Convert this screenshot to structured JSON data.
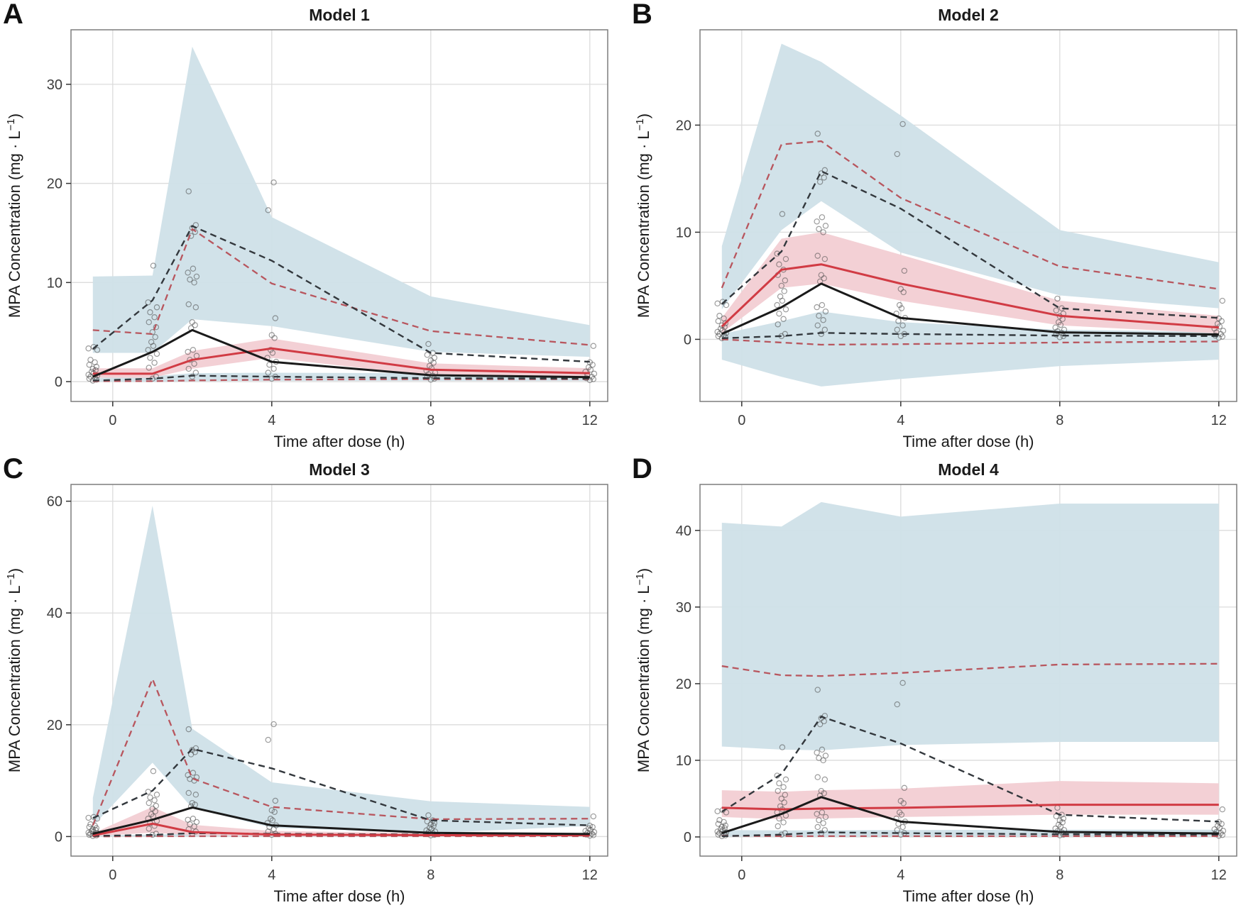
{
  "chart_data": {
    "type": "line",
    "description": "Visual predictive check of four pharmacokinetic models: observed percentiles (black), simulated percentiles (red) with confidence bands (blue = outer percentile CI, pink = median CI), and observed concentration points (open circles).",
    "xlabel": "Time after dose (h)",
    "ylabel": "MPA Concentration (mg · L⁻¹)",
    "ylabel_parts": [
      "MPA Concentration (mg · L",
      "−1",
      ")"
    ],
    "xticks": [
      0,
      4,
      8,
      12
    ],
    "xlim": [
      -1.05,
      12.45
    ],
    "x": [
      -0.5,
      1,
      2,
      4,
      8,
      12
    ],
    "observed": {
      "median": [
        0.5,
        3.0,
        5.2,
        2.0,
        0.65,
        0.45
      ],
      "p975": [
        3.3,
        8.2,
        15.7,
        12.2,
        2.9,
        2.0
      ],
      "p025": [
        0.1,
        0.3,
        0.6,
        0.5,
        0.35,
        0.3
      ],
      "points": {
        "-0.5": [
          0.1,
          0.2,
          0.3,
          0.4,
          0.5,
          0.6,
          0.7,
          0.85,
          1.0,
          1.15,
          1.3,
          1.5,
          1.7,
          1.95,
          2.2,
          3.2,
          3.35,
          3.5
        ],
        "1": [
          0.3,
          0.5,
          1.4,
          1.9,
          2.4,
          2.8,
          3.2,
          3.6,
          4.0,
          4.5,
          5.0,
          5.5,
          6.0,
          6.5,
          7.0,
          7.5,
          8.0,
          11.7
        ],
        "2": [
          0.5,
          0.9,
          1.3,
          1.8,
          2.2,
          2.6,
          3.0,
          3.2,
          5.4,
          5.7,
          6.0,
          7.5,
          7.8,
          10.0,
          10.3,
          10.6,
          11.0,
          11.4,
          14.7,
          15.1,
          15.5,
          15.8,
          19.2
        ],
        "4": [
          0.3,
          0.5,
          0.9,
          1.3,
          1.7,
          2.0,
          2.4,
          2.9,
          3.2,
          4.4,
          4.7,
          6.4,
          17.3,
          20.1
        ],
        "8": [
          0.2,
          0.3,
          0.45,
          0.6,
          0.75,
          0.9,
          1.1,
          1.35,
          1.6,
          1.9,
          2.15,
          2.4,
          2.7,
          2.9,
          3.8
        ],
        "12": [
          0.15,
          0.25,
          0.35,
          0.5,
          0.65,
          0.8,
          1.0,
          1.2,
          1.45,
          1.7,
          1.95,
          3.6
        ]
      }
    },
    "panels": [
      {
        "panel_label": "A",
        "title": "Model 1",
        "ylim": [
          -2.0,
          35.5
        ],
        "yticks": [
          0,
          10,
          20,
          30
        ],
        "simulated": {
          "median": [
            0.8,
            0.8,
            2.2,
            3.35,
            1.2,
            0.85
          ],
          "median_ci": {
            "lo": [
              0.4,
              0.4,
              1.3,
              2.4,
              0.6,
              0.45
            ],
            "hi": [
              1.35,
              1.35,
              3.1,
              4.35,
              1.85,
              1.35
            ]
          },
          "p975": [
            5.2,
            4.8,
            15.4,
            9.9,
            5.1,
            3.7
          ],
          "p025": [
            0.05,
            0.05,
            0.12,
            0.2,
            0.25,
            0.25
          ],
          "p975_ci": {
            "lo": [
              2.9,
              2.9,
              6.3,
              5.6,
              3.0,
              2.5
            ],
            "hi": [
              10.6,
              10.7,
              33.8,
              16.6,
              8.6,
              5.7
            ]
          },
          "p025_ci": {
            "lo": [
              0.0,
              0.0,
              0.05,
              0.08,
              0.08,
              0.08
            ],
            "hi": [
              0.35,
              0.55,
              0.85,
              0.9,
              0.85,
              0.8
            ]
          }
        }
      },
      {
        "panel_label": "B",
        "title": "Model 2",
        "ylim": [
          -5.8,
          28.9
        ],
        "yticks": [
          0,
          10,
          20
        ],
        "simulated": {
          "median": [
            1.2,
            6.5,
            7.0,
            5.2,
            2.2,
            1.1
          ],
          "median_ci": {
            "lo": [
              0.6,
              4.8,
              5.2,
              3.6,
              1.3,
              0.55
            ],
            "hi": [
              2.0,
              9.4,
              10.0,
              7.9,
              3.6,
              2.2
            ]
          },
          "p975": [
            4.8,
            18.2,
            18.5,
            13.2,
            6.8,
            4.7
          ],
          "p025": [
            0.0,
            -0.3,
            -0.5,
            -0.45,
            -0.3,
            -0.2
          ],
          "p975_ci": {
            "lo": [
              2.8,
              10.2,
              12.9,
              8.1,
              4.1,
              2.9
            ],
            "hi": [
              8.7,
              27.6,
              25.9,
              20.9,
              10.2,
              7.2
            ]
          },
          "p025_ci": {
            "lo": [
              -1.9,
              -3.5,
              -4.4,
              -3.7,
              -2.5,
              -1.9
            ],
            "hi": [
              0.5,
              1.7,
              2.6,
              1.6,
              0.9,
              0.7
            ]
          }
        }
      },
      {
        "panel_label": "C",
        "title": "Model 3",
        "ylim": [
          -3.5,
          63.0
        ],
        "yticks": [
          0,
          20,
          40,
          60
        ],
        "simulated": {
          "median": [
            0.2,
            2.3,
            0.8,
            0.35,
            0.25,
            0.25
          ],
          "median_ci": {
            "lo": [
              0.05,
              0.7,
              0.25,
              0.1,
              0.05,
              0.05
            ],
            "hi": [
              0.6,
              5.3,
              2.1,
              1.0,
              0.6,
              0.6
            ]
          },
          "p975": [
            2.0,
            28.2,
            10.4,
            5.3,
            3.1,
            3.2
          ],
          "p025": [
            0.02,
            0.05,
            0.05,
            0.05,
            0.05,
            0.05
          ],
          "p975_ci": {
            "lo": [
              1.9,
              13.2,
              5.1,
              1.6,
              0.6,
              1.9
            ],
            "hi": [
              6.9,
              59.2,
              19.3,
              9.7,
              6.3,
              5.3
            ]
          },
          "p025_ci": {
            "lo": [
              0.0,
              0.0,
              0.02,
              0.03,
              0.03,
              0.03
            ],
            "hi": [
              0.2,
              0.35,
              0.5,
              0.45,
              0.4,
              0.4
            ]
          }
        }
      },
      {
        "panel_label": "D",
        "title": "Model 4",
        "ylim": [
          -2.5,
          46.0
        ],
        "yticks": [
          0,
          10,
          20,
          30,
          40
        ],
        "simulated": {
          "median": [
            3.8,
            3.6,
            3.7,
            3.8,
            4.2,
            4.2
          ],
          "median_ci": {
            "lo": [
              2.6,
              2.3,
              2.4,
              2.6,
              2.9,
              2.9
            ],
            "hi": [
              6.1,
              5.9,
              6.1,
              6.3,
              7.3,
              7.0
            ]
          },
          "p975": [
            22.3,
            21.1,
            21.0,
            21.4,
            22.5,
            22.6
          ],
          "p025": [
            0.15,
            0.1,
            0.1,
            0.1,
            0.1,
            0.1
          ],
          "p975_ci": {
            "lo": [
              11.8,
              11.4,
              11.3,
              12.0,
              12.4,
              12.4
            ],
            "hi": [
              41.0,
              40.5,
              43.7,
              41.8,
              43.5,
              43.5
            ]
          },
          "p025_ci": {
            "lo": [
              0.05,
              0.05,
              0.05,
              0.05,
              0.05,
              0.05
            ],
            "hi": [
              0.9,
              0.85,
              0.85,
              0.9,
              0.95,
              0.95
            ]
          }
        }
      }
    ]
  },
  "colors": {
    "band_blue": "#cfe0e8",
    "band_pink": "#f2cdd3",
    "sim_line_red": "#d13b44",
    "sim_dash_red": "#b8565e",
    "obs_line_black": "#1a1a1a",
    "obs_dash_black": "#33383d",
    "point_stroke": "#4a4a4a",
    "grid": "#dcdcdc",
    "panel_border": "#7d7d7d",
    "tick_text": "#3d3d3d",
    "axis_title_text": "#1a1a1a"
  }
}
